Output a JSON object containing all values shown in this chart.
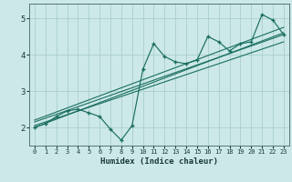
{
  "xlabel": "Humidex (Indice chaleur)",
  "bg_color": "#cce8e8",
  "line_color": "#1a6e60",
  "grid_color": "#aad0cc",
  "xlim": [
    -0.5,
    23.5
  ],
  "ylim": [
    1.5,
    5.4
  ],
  "xticks": [
    0,
    1,
    2,
    3,
    4,
    5,
    6,
    7,
    8,
    9,
    10,
    11,
    12,
    13,
    14,
    15,
    16,
    17,
    18,
    19,
    20,
    21,
    22,
    23
  ],
  "yticks": [
    2,
    3,
    4,
    5
  ],
  "main_x": [
    0,
    1,
    2,
    3,
    4,
    5,
    6,
    7,
    8,
    9,
    10,
    11,
    12,
    13,
    14,
    15,
    16,
    17,
    18,
    19,
    20,
    21,
    22,
    23
  ],
  "main_y": [
    2.0,
    2.1,
    2.3,
    2.45,
    2.5,
    2.4,
    2.3,
    1.95,
    1.65,
    2.05,
    3.6,
    4.3,
    3.95,
    3.8,
    3.75,
    3.85,
    4.5,
    4.35,
    4.1,
    4.3,
    4.35,
    5.1,
    4.95,
    4.55
  ],
  "line1_x": [
    0,
    23
  ],
  "line1_y": [
    2.0,
    4.6
  ],
  "line2_x": [
    0,
    23
  ],
  "line2_y": [
    2.05,
    4.35
  ],
  "line3_x": [
    0,
    23
  ],
  "line3_y": [
    2.2,
    4.75
  ],
  "line4_x": [
    0,
    23
  ],
  "line4_y": [
    2.15,
    4.55
  ]
}
